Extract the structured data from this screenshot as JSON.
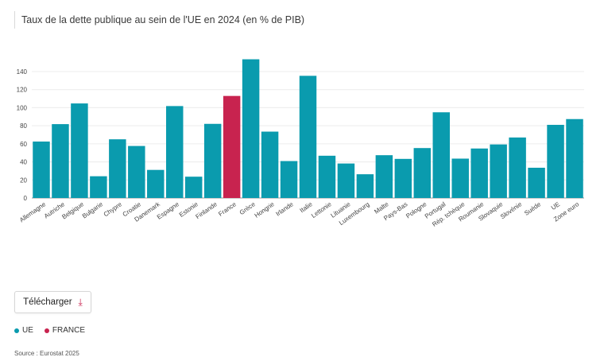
{
  "title": "Taux de la dette publique au sein de l'UE en 2024 (en % de PIB)",
  "download_label": "Télécharger",
  "download_icon": "download-arrow-icon",
  "legend": [
    {
      "label": "UE",
      "color": "#0a9bae"
    },
    {
      "label": "FRANCE",
      "color": "#c8234f"
    }
  ],
  "source": "Source : Eurostat 2025",
  "chart_data": {
    "type": "bar",
    "title": "Taux de la dette publique au sein de l'UE en 2024 (en % de PIB)",
    "xlabel": "",
    "ylabel": "",
    "ylim": [
      0,
      160
    ],
    "yticks": [
      0,
      20,
      40,
      60,
      80,
      100,
      120,
      140
    ],
    "grid": true,
    "categories": [
      "Allemagne",
      "Autriche",
      "Belgique",
      "Bulgarie",
      "Chypre",
      "Croatie",
      "Danemark",
      "Espagne",
      "Estonie",
      "Finlande",
      "France",
      "Grèce",
      "Hongrie",
      "Irlande",
      "Italie",
      "Lettonie",
      "Lituanie",
      "Luxembourg",
      "Malte",
      "Pays-Bas",
      "Pologne",
      "Portugal",
      "Rép. tchèque",
      "Roumanie",
      "Slovaquie",
      "Slovénie",
      "Suède",
      "UE",
      "Zone euro"
    ],
    "values": [
      62.5,
      81.8,
      104.7,
      24.1,
      65.0,
      57.6,
      31.1,
      101.8,
      23.6,
      82.1,
      113.0,
      153.6,
      73.5,
      40.9,
      135.3,
      46.8,
      38.2,
      26.3,
      47.4,
      43.3,
      55.3,
      94.9,
      43.6,
      54.8,
      59.3,
      67.0,
      33.5,
      81.0,
      87.4
    ],
    "highlight": "France",
    "colors": {
      "default": "#0a9bae",
      "highlight": "#c8234f"
    }
  }
}
